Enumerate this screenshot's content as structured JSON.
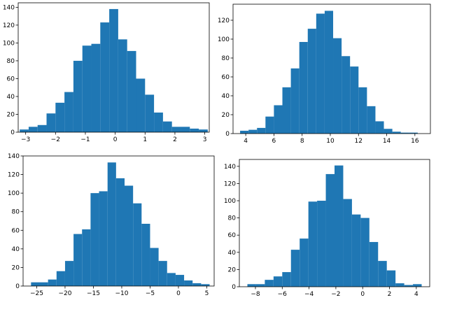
{
  "chart_data": [
    {
      "type": "bar",
      "subtype": "histogram",
      "bar_color": "#1f77b4",
      "bin_edges": [
        -3.2,
        -2.9,
        -2.6,
        -2.3,
        -2.0,
        -1.7,
        -1.4,
        -1.1,
        -0.8,
        -0.5,
        -0.2,
        0.1,
        0.4,
        0.7,
        1.0,
        1.3,
        1.6,
        1.9,
        2.2,
        2.5,
        2.8,
        3.1
      ],
      "values": [
        3,
        6,
        8,
        21,
        33,
        45,
        80,
        97,
        99,
        123,
        138,
        104,
        91,
        60,
        42,
        22,
        12,
        6,
        6,
        4,
        3
      ],
      "xlim": [
        -3.25,
        3.15
      ],
      "ylim": [
        0,
        145
      ],
      "xticks": [
        -3,
        -2,
        -1,
        0,
        1,
        2,
        3
      ],
      "yticks": [
        0,
        20,
        40,
        60,
        80,
        100,
        120,
        140
      ],
      "title": "",
      "xlabel": "",
      "ylabel": ""
    },
    {
      "type": "bar",
      "subtype": "histogram",
      "bar_color": "#1f77b4",
      "bin_edges": [
        3.6,
        4.2,
        4.8,
        5.4,
        6.0,
        6.6,
        7.2,
        7.8,
        8.4,
        9.0,
        9.6,
        10.2,
        10.8,
        11.4,
        12.0,
        12.6,
        13.2,
        13.8,
        14.4,
        15.0,
        15.6,
        16.2
      ],
      "values": [
        3,
        4,
        6,
        18,
        30,
        49,
        69,
        97,
        111,
        127,
        130,
        101,
        82,
        71,
        49,
        29,
        13,
        5,
        2,
        1,
        1
      ],
      "xlim": [
        3.1,
        17.1
      ],
      "ylim": [
        0,
        137
      ],
      "xticks": [
        4,
        6,
        8,
        10,
        12,
        14,
        16
      ],
      "yticks": [
        0,
        20,
        40,
        60,
        80,
        100,
        120
      ],
      "title": "",
      "xlabel": "",
      "ylabel": ""
    },
    {
      "type": "bar",
      "subtype": "histogram",
      "bar_color": "#1f77b4",
      "bin_edges": [
        -26,
        -24.5,
        -23,
        -21.5,
        -20,
        -18.5,
        -17,
        -15.5,
        -14,
        -12.5,
        -11,
        -9.5,
        -8,
        -6.5,
        -5,
        -3.5,
        -2,
        -0.5,
        1,
        2.5,
        4,
        5.5
      ],
      "values": [
        4,
        4,
        7,
        16,
        27,
        56,
        61,
        100,
        102,
        133,
        116,
        108,
        89,
        67,
        41,
        27,
        14,
        12,
        6,
        3,
        2
      ],
      "xlim": [
        -27.4,
        6.3
      ],
      "ylim": [
        0,
        140
      ],
      "xticks": [
        -25,
        -20,
        -15,
        -10,
        -5,
        0,
        5
      ],
      "yticks": [
        0,
        20,
        40,
        60,
        80,
        100,
        120,
        140
      ],
      "title": "",
      "xlabel": "",
      "ylabel": ""
    },
    {
      "type": "bar",
      "subtype": "histogram",
      "bar_color": "#1f77b4",
      "bin_edges": [
        -8.6,
        -7.95,
        -7.3,
        -6.65,
        -6.0,
        -5.35,
        -4.7,
        -4.05,
        -3.4,
        -2.75,
        -2.1,
        -1.45,
        -0.8,
        -0.15,
        0.5,
        1.15,
        1.8,
        2.45,
        3.1,
        3.75,
        4.4
      ],
      "values": [
        3,
        3,
        8,
        12,
        17,
        43,
        56,
        99,
        100,
        131,
        141,
        102,
        84,
        80,
        52,
        30,
        19,
        4,
        2,
        3
      ],
      "xlim": [
        -9.2,
        5.0
      ],
      "ylim": [
        0,
        148
      ],
      "xticks": [
        -8,
        -6,
        -4,
        -2,
        0,
        2,
        4
      ],
      "yticks": [
        0,
        20,
        40,
        60,
        80,
        100,
        120,
        140
      ],
      "title": "",
      "xlabel": "",
      "ylabel": ""
    }
  ]
}
